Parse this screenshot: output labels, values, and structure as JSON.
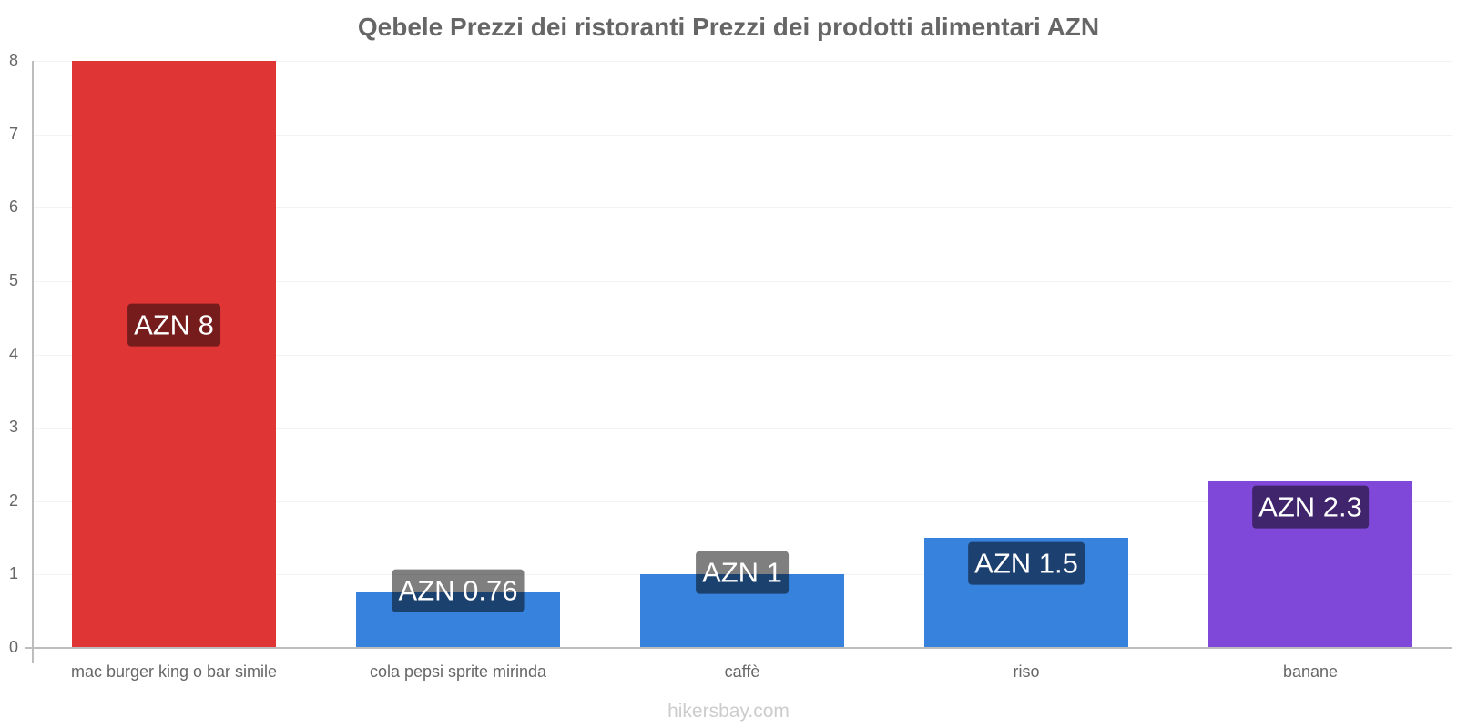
{
  "title": "Qebele Prezzi dei ristoranti Prezzi dei prodotti alimentari AZN",
  "watermark": "hikersbay.com",
  "y_ticks": [
    "0",
    "1",
    "2",
    "3",
    "4",
    "5",
    "6",
    "7",
    "8"
  ],
  "bars": [
    {
      "category": "mac burger king o bar simile",
      "value": 8,
      "label": "AZN 8",
      "color": "#e03535",
      "label_bg": "#771c1c"
    },
    {
      "category": "cola pepsi sprite mirinda",
      "value": 0.76,
      "label": "AZN 0.76",
      "color": "#3682dd",
      "label_bg": "#1c4170"
    },
    {
      "category": "caffè",
      "value": 1,
      "label": "AZN 1",
      "color": "#3682dd",
      "label_bg": "#1c4170"
    },
    {
      "category": "riso",
      "value": 1.5,
      "label": "AZN 1.5",
      "color": "#3682dd",
      "label_bg": "#1c4170"
    },
    {
      "category": "banane",
      "value": 2.27,
      "label": "AZN 2.3",
      "color": "#8048d8",
      "label_bg": "#40246c"
    }
  ],
  "chart_data": {
    "type": "bar",
    "title": "Qebele Prezzi dei ristoranti Prezzi dei prodotti alimentari AZN",
    "categories": [
      "mac burger king o bar simile",
      "cola pepsi sprite mirinda",
      "caffè",
      "riso",
      "banane"
    ],
    "values": [
      8,
      0.76,
      1,
      1.5,
      2.27
    ],
    "data_labels": [
      "AZN 8",
      "AZN 0.76",
      "AZN 1",
      "AZN 1.5",
      "AZN 2.3"
    ],
    "xlabel": "",
    "ylabel": "",
    "ylim": [
      0,
      8
    ],
    "yticks": [
      0,
      1,
      2,
      3,
      4,
      5,
      6,
      7,
      8
    ],
    "grid": true,
    "legend": "none",
    "colors": [
      "#e03535",
      "#3682dd",
      "#3682dd",
      "#3682dd",
      "#8048d8"
    ]
  }
}
